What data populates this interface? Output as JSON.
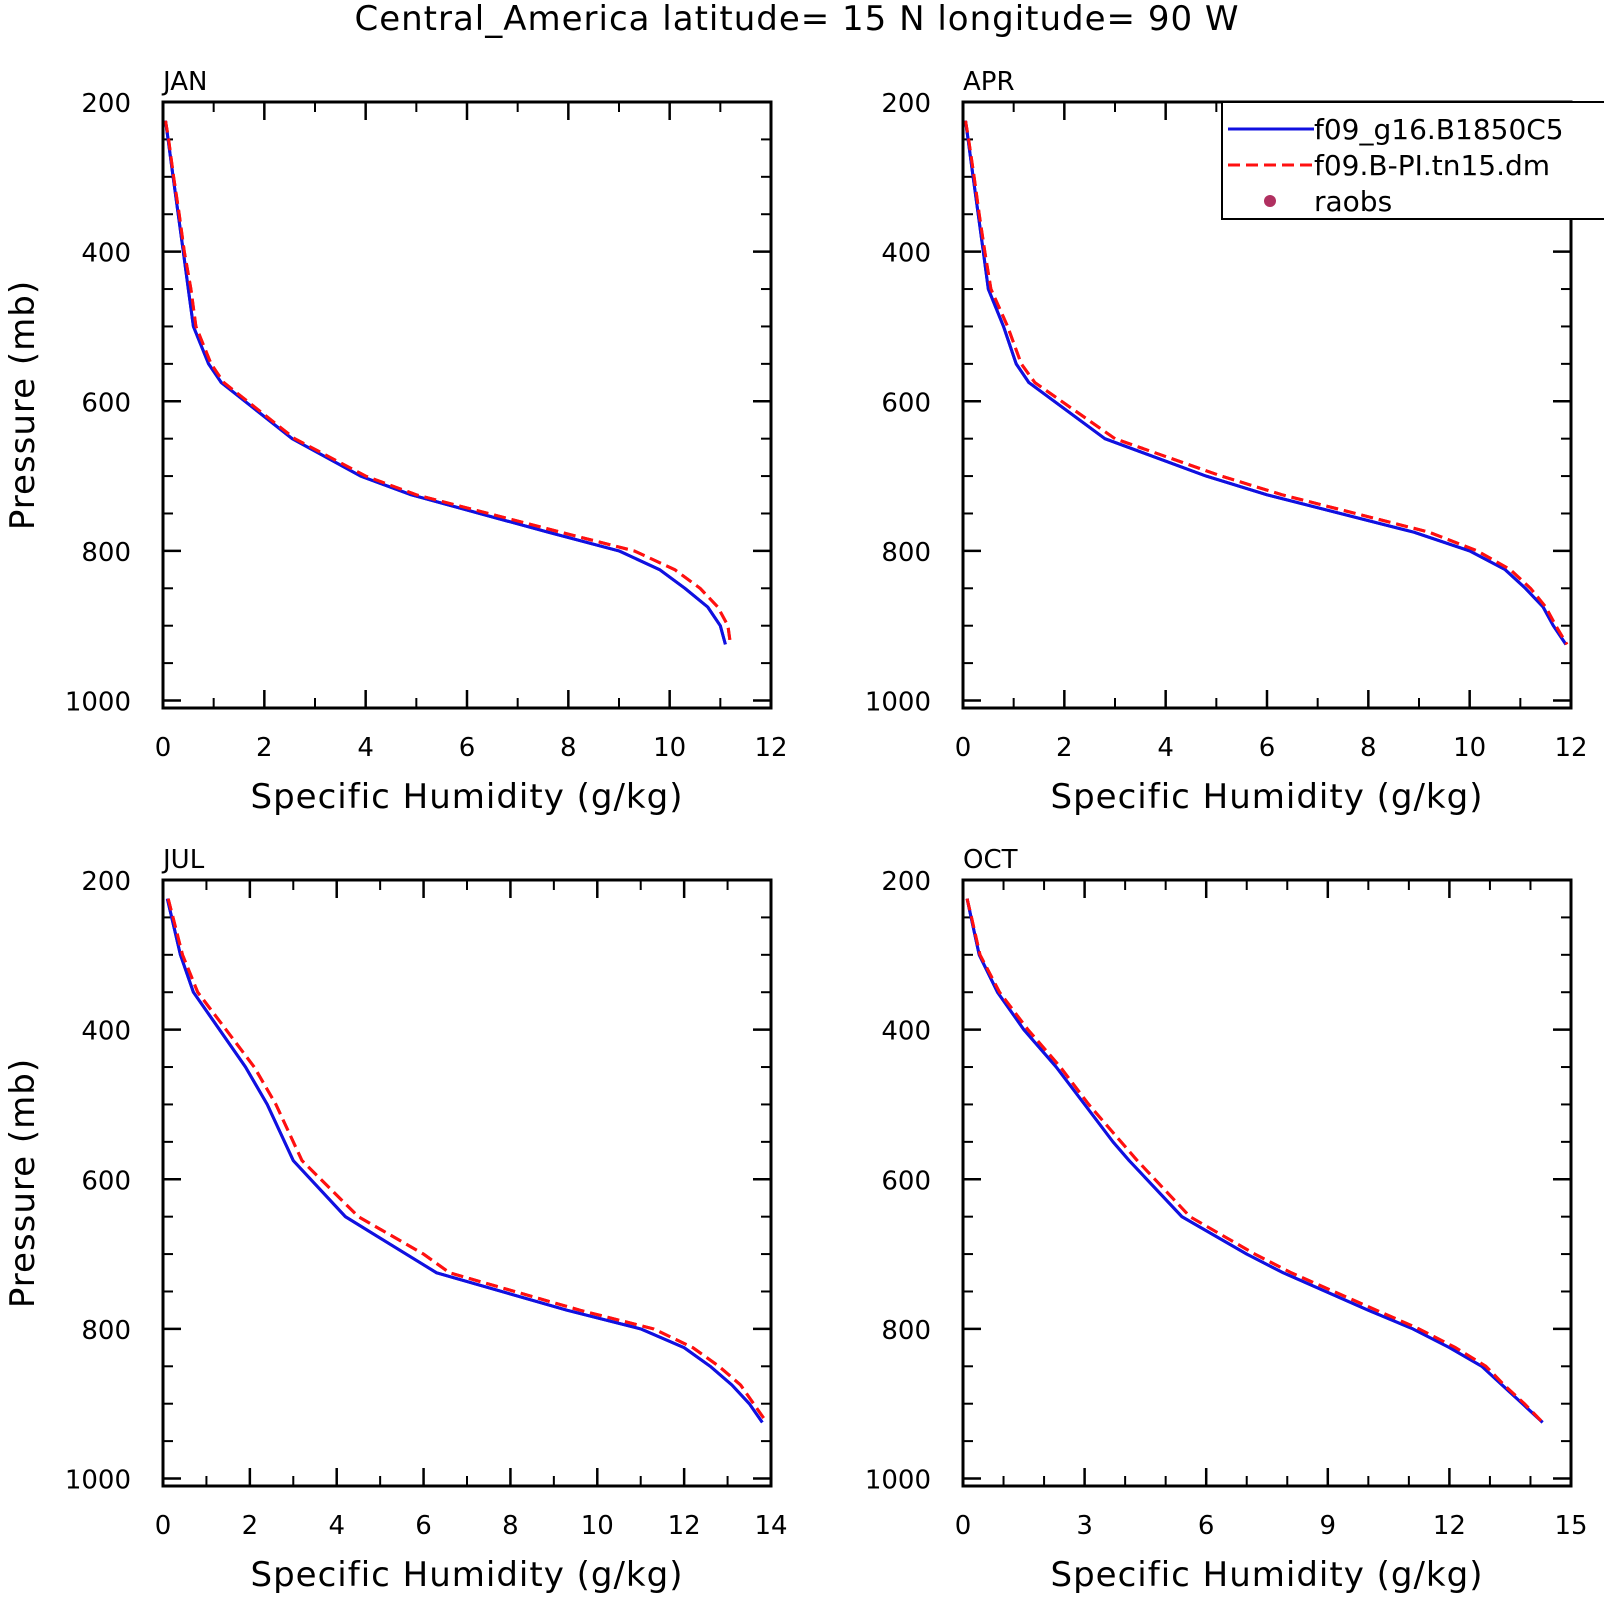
{
  "figure": {
    "title": "Central_America  latitude= 15 N longitude= 90 W"
  },
  "colors": {
    "series_1": "#1010e0",
    "series_2": "#ff1010",
    "raobs": "#b03060",
    "axes": "#000000"
  },
  "legend": {
    "placement": "top-right (clipped at figure edge)",
    "entries": [
      {
        "label": "f09_g16.B1850C5",
        "style": "solid",
        "color": "#1010e0"
      },
      {
        "label": "f09.B-PI.tn15.dm",
        "style": "dashed",
        "color": "#ff1010"
      },
      {
        "label": "raobs",
        "style": "marker",
        "color": "#b03060"
      }
    ]
  },
  "chart_data": [
    {
      "type": "line",
      "panel_label": "JAN",
      "xlabel": "Specific Humidity (g/kg)",
      "ylabel": "Pressure (mb)",
      "xlim": [
        0,
        12
      ],
      "ylim": [
        1010,
        200
      ],
      "y_inverted": true,
      "xticks": [
        0,
        2,
        4,
        6,
        8,
        10,
        12
      ],
      "yticks": [
        200,
        400,
        600,
        800,
        1000
      ],
      "y": [
        225,
        250,
        300,
        350,
        400,
        450,
        500,
        550,
        575,
        650,
        700,
        725,
        775,
        800,
        825,
        850,
        875,
        900,
        925
      ],
      "series": [
        {
          "name": "f09_g16.B1850C5",
          "x": [
            0.05,
            0.1,
            0.2,
            0.3,
            0.4,
            0.5,
            0.6,
            0.9,
            1.15,
            2.55,
            3.9,
            4.9,
            7.6,
            9.0,
            9.8,
            10.3,
            10.75,
            11.0,
            11.1
          ]
        },
        {
          "name": "f09.B-PI.tn15.dm",
          "x": [
            0.05,
            0.11,
            0.21,
            0.32,
            0.42,
            0.55,
            0.65,
            0.95,
            1.2,
            2.6,
            4.0,
            5.0,
            7.85,
            9.3,
            10.1,
            10.6,
            10.95,
            11.15,
            11.2
          ]
        }
      ]
    },
    {
      "type": "line",
      "panel_label": "APR",
      "xlabel": "Specific Humidity (g/kg)",
      "ylabel": "",
      "xlim": [
        0,
        12
      ],
      "ylim": [
        1010,
        200
      ],
      "y_inverted": true,
      "xticks": [
        0,
        2,
        4,
        6,
        8,
        10,
        12
      ],
      "yticks": [
        200,
        400,
        600,
        800,
        1000
      ],
      "y": [
        225,
        250,
        300,
        350,
        400,
        450,
        500,
        550,
        575,
        650,
        700,
        725,
        775,
        800,
        825,
        850,
        875,
        900,
        925
      ],
      "series": [
        {
          "name": "f09_g16.B1850C5",
          "x": [
            0.05,
            0.1,
            0.2,
            0.3,
            0.4,
            0.5,
            0.8,
            1.05,
            1.3,
            2.8,
            4.8,
            6.0,
            8.9,
            10.0,
            10.7,
            11.1,
            11.45,
            11.65,
            11.9
          ]
        },
        {
          "name": "f09.B-PI.tn15.dm",
          "x": [
            0.05,
            0.11,
            0.22,
            0.32,
            0.43,
            0.55,
            0.88,
            1.15,
            1.42,
            3.0,
            5.1,
            6.3,
            9.2,
            10.15,
            10.8,
            11.2,
            11.5,
            11.7,
            11.92
          ]
        }
      ]
    },
    {
      "type": "line",
      "panel_label": "JUL",
      "xlabel": "Specific Humidity (g/kg)",
      "ylabel": "Pressure (mb)",
      "xlim": [
        0,
        14
      ],
      "ylim": [
        1010,
        200
      ],
      "y_inverted": true,
      "xticks": [
        0,
        2,
        4,
        6,
        8,
        10,
        12,
        14
      ],
      "yticks": [
        200,
        400,
        600,
        800,
        1000
      ],
      "y": [
        225,
        250,
        300,
        350,
        400,
        450,
        500,
        550,
        575,
        650,
        700,
        725,
        775,
        800,
        825,
        850,
        875,
        900,
        925
      ],
      "series": [
        {
          "name": "f09_g16.B1850C5",
          "x": [
            0.1,
            0.2,
            0.4,
            0.7,
            1.3,
            1.9,
            2.4,
            2.8,
            3.0,
            4.2,
            5.6,
            6.3,
            9.3,
            11.0,
            12.0,
            12.6,
            13.1,
            13.5,
            13.8
          ]
        },
        {
          "name": "f09.B-PI.tn15.dm",
          "x": [
            0.12,
            0.23,
            0.45,
            0.8,
            1.45,
            2.1,
            2.6,
            3.0,
            3.2,
            4.5,
            6.0,
            6.6,
            9.6,
            11.3,
            12.2,
            12.8,
            13.3,
            13.6,
            13.9
          ]
        }
      ]
    },
    {
      "type": "line",
      "panel_label": "OCT",
      "xlabel": "Specific Humidity (g/kg)",
      "ylabel": "",
      "xlim": [
        0,
        15
      ],
      "ylim": [
        1010,
        200
      ],
      "y_inverted": true,
      "xticks": [
        0,
        3,
        6,
        9,
        12,
        15
      ],
      "yticks": [
        200,
        400,
        600,
        800,
        1000
      ],
      "y": [
        225,
        250,
        300,
        350,
        400,
        450,
        500,
        550,
        575,
        650,
        700,
        725,
        775,
        800,
        825,
        850,
        875,
        900,
        925
      ],
      "series": [
        {
          "name": "f09_g16.B1850C5",
          "x": [
            0.1,
            0.2,
            0.4,
            0.85,
            1.5,
            2.3,
            3.0,
            3.7,
            4.1,
            5.4,
            7.0,
            7.9,
            10.0,
            11.1,
            12.0,
            12.8,
            13.3,
            13.8,
            14.3
          ]
        },
        {
          "name": "f09.B-PI.tn15.dm",
          "x": [
            0.1,
            0.21,
            0.42,
            0.9,
            1.6,
            2.4,
            3.1,
            3.9,
            4.3,
            5.6,
            7.2,
            8.1,
            10.2,
            11.25,
            12.15,
            12.9,
            13.35,
            13.85,
            14.3
          ]
        }
      ]
    }
  ]
}
